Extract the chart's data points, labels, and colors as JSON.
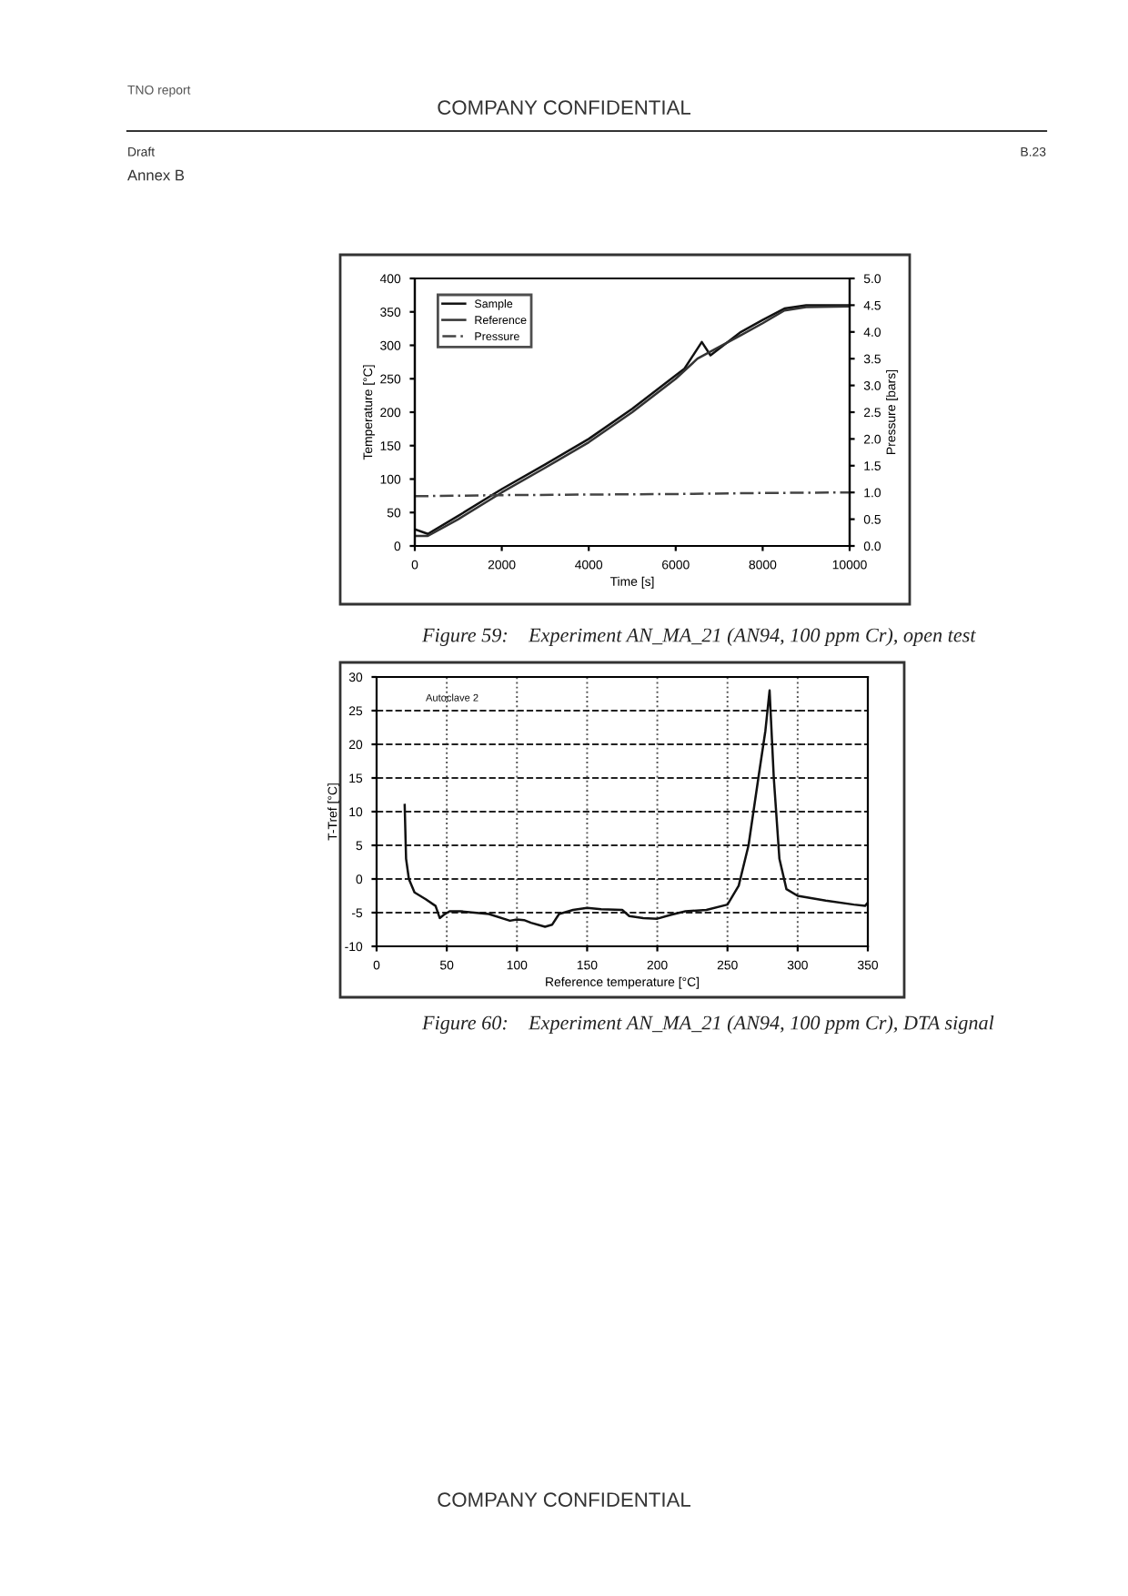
{
  "chart_data": [
    {
      "type": "line",
      "xlabel": "Time [s]",
      "ylabel": "Temperature [°C]",
      "y2label": "Pressure [bars]",
      "annotations": [
        "TNO report",
        "COMPANY CONFIDENTIAL",
        "Draft",
        "Annex B",
        "B.23",
        "Figure 59:    Experiment AN_MA_21 (AN94, 100 ppm Cr), open test"
      ],
      "series": [
        {
          "name": "Sample",
          "color": "#111111",
          "line_style": "solid",
          "x": [
            0,
            300,
            1000,
            2000,
            3000,
            4000,
            5000,
            6000,
            6200,
            6450,
            6600,
            6800,
            7500,
            8000,
            8500,
            9000,
            10000
          ],
          "values": [
            25,
            18,
            45,
            85,
            122,
            160,
            205,
            255,
            265,
            290,
            305,
            285,
            320,
            338,
            355,
            360,
            360
          ]
        },
        {
          "name": "Reference",
          "color": "#333333",
          "line_style": "solid",
          "x": [
            0,
            300,
            1000,
            2000,
            3000,
            4000,
            5000,
            6000,
            6500,
            7500,
            8000,
            8500,
            9000,
            10000
          ],
          "values": [
            15,
            15,
            40,
            80,
            117,
            155,
            200,
            250,
            280,
            315,
            333,
            352,
            357,
            358
          ]
        },
        {
          "name": "Pressure",
          "color": "#444444",
          "line_style": "dashed",
          "axis": "y2",
          "x": [
            0,
            2000,
            4000,
            6000,
            8000,
            10000
          ],
          "values": [
            0.93,
            0.95,
            0.96,
            0.97,
            0.99,
            1.0
          ]
        }
      ],
      "xlim": [
        0,
        10000
      ],
      "xticks": [
        0,
        2000,
        4000,
        6000,
        8000,
        10000
      ],
      "ylim": [
        0,
        400
      ],
      "yticks": [
        0,
        50,
        100,
        150,
        200,
        250,
        300,
        350,
        400
      ],
      "y2lim": [
        0,
        5
      ],
      "y2ticks": [
        {
          "value": 0,
          "label": "0.0"
        },
        0.5,
        {
          "value": 1,
          "label": "1.0"
        },
        1.5,
        {
          "value": 2,
          "label": "2.0"
        },
        2.5,
        {
          "value": 3,
          "label": "3.0"
        },
        3.5,
        {
          "value": 4,
          "label": "4.0"
        },
        4.5,
        {
          "value": 5,
          "label": "5.0"
        }
      ],
      "grid": false,
      "legend": "top left",
      "marker": "none"
    },
    {
      "type": "line",
      "xlabel": "Reference temperature [°C]",
      "ylabel": "T-Tref [°C]",
      "annotations": [
        "Autoclave 2",
        "Figure 60:    Experiment AN_MA_21 (AN94, 100 ppm Cr), DTA signal",
        "COMPANY CONFIDENTIAL"
      ],
      "series": [
        {
          "color": "#111111",
          "x": [
            20,
            21,
            23,
            27,
            35,
            42,
            45,
            48,
            52,
            60,
            80,
            95,
            100,
            105,
            110,
            120,
            125,
            130,
            140,
            150,
            160,
            175,
            180,
            190,
            200,
            210,
            220,
            235,
            250,
            258,
            265,
            272,
            277,
            280,
            283,
            287,
            292,
            300,
            320,
            340,
            348,
            350
          ],
          "values": [
            11,
            3,
            0,
            -2,
            -3,
            -4,
            -5.8,
            -5.3,
            -4.8,
            -4.8,
            -5.2,
            -6.2,
            -6.0,
            -6.1,
            -6.5,
            -7.1,
            -6.8,
            -5.2,
            -4.6,
            -4.3,
            -4.5,
            -4.6,
            -5.5,
            -5.8,
            -5.9,
            -5.3,
            -4.8,
            -4.6,
            -3.8,
            -1,
            5,
            15,
            22,
            28,
            15,
            3,
            -1.5,
            -2.5,
            -3.2,
            -3.8,
            -4,
            -3.5
          ]
        }
      ],
      "xlim": [
        0,
        350
      ],
      "xticks": [
        0,
        50,
        100,
        150,
        200,
        250,
        300,
        350
      ],
      "ylim": [
        -10,
        30
      ],
      "yticks": [
        -10,
        -5,
        0,
        5,
        10,
        15,
        20,
        25,
        30
      ],
      "grid": true,
      "marker": "none"
    }
  ]
}
